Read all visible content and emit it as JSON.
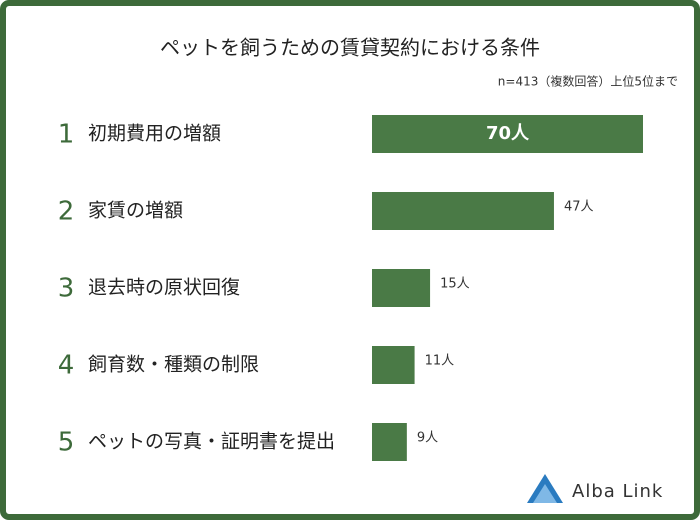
{
  "chart_data": {
    "type": "bar",
    "orientation": "horizontal",
    "title": "ペットを飼うための賃貸契約における条件",
    "subtitle": "n=413（複数回答）上位5位まで",
    "ranks": [
      1,
      2,
      3,
      4,
      5
    ],
    "categories": [
      "初期費用の増額",
      "家賃の増額",
      "退去時の原状回復",
      "飼育数・種類の制限",
      "ペットの写真・証明書を提出"
    ],
    "values": [
      70,
      47,
      15,
      11,
      9
    ],
    "value_labels": [
      "70人",
      "47人",
      "15人",
      "11人",
      "9人"
    ],
    "color": "#4a7a46",
    "logo": "Alba Link"
  }
}
